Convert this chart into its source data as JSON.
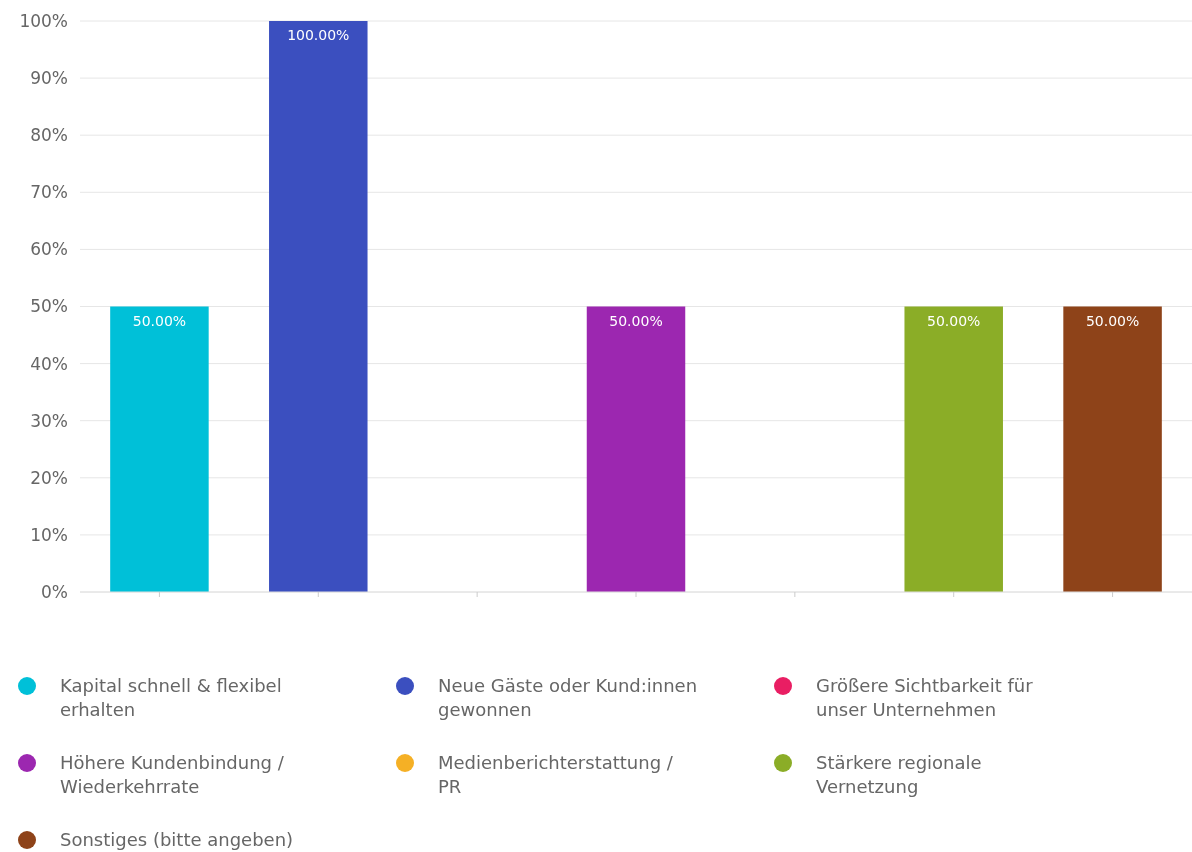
{
  "chart_data": {
    "type": "bar",
    "categories": [
      null,
      null,
      null,
      null,
      null,
      null,
      null
    ],
    "series": [
      {
        "name": "Kapital schnell & flexibel erhalten",
        "color": "#00c0d8",
        "values": [
          50,
          null,
          null,
          null,
          null,
          null,
          null
        ],
        "value_labels": [
          "50.00%",
          null,
          null,
          null,
          null,
          null,
          null
        ]
      },
      {
        "name": "Neue Gäste oder Kund:innen gewonnen",
        "color": "#3b4fbf",
        "values": [
          null,
          100,
          null,
          null,
          null,
          null,
          null
        ],
        "value_labels": [
          null,
          "100.00%",
          null,
          null,
          null,
          null,
          null
        ]
      },
      {
        "name": "Größere Sichtbarkeit für unser Unternehmen",
        "color": "#e91e63",
        "values": [
          null,
          null,
          0,
          null,
          null,
          null,
          null
        ],
        "value_labels": [
          null,
          null,
          null,
          null,
          null,
          null,
          null
        ]
      },
      {
        "name": "Höhere Kundenbindung / Wiederkehrrate",
        "color": "#9c27b0",
        "values": [
          null,
          null,
          null,
          50,
          null,
          null,
          null
        ],
        "value_labels": [
          null,
          null,
          null,
          "50.00%",
          null,
          null,
          null
        ]
      },
      {
        "name": "Medienberichterstattung / PR",
        "color": "#f5b025",
        "values": [
          null,
          null,
          null,
          null,
          0,
          null,
          null
        ],
        "value_labels": [
          null,
          null,
          null,
          null,
          null,
          null,
          null
        ]
      },
      {
        "name": "Stärkere regionale Vernetzung",
        "color": "#8bad27",
        "values": [
          null,
          null,
          null,
          null,
          null,
          50,
          null
        ],
        "value_labels": [
          null,
          null,
          null,
          null,
          null,
          "50.00%",
          null
        ]
      },
      {
        "name": "Sonstiges (bitte angeben)",
        "color": "#8e4319",
        "values": [
          null,
          null,
          null,
          null,
          null,
          null,
          50
        ],
        "value_labels": [
          null,
          null,
          null,
          null,
          null,
          null,
          "50.00%"
        ]
      }
    ],
    "ylim": [
      0,
      100
    ],
    "yticks": [
      {
        "value": 0,
        "label": "0%"
      },
      {
        "value": 10,
        "label": "10%"
      },
      {
        "value": 20,
        "label": "20%"
      },
      {
        "value": 30,
        "label": "30%"
      },
      {
        "value": 40,
        "label": "40%"
      },
      {
        "value": 50,
        "label": "50%"
      },
      {
        "value": 60,
        "label": "60%"
      },
      {
        "value": 70,
        "label": "70%"
      },
      {
        "value": 80,
        "label": "80%"
      },
      {
        "value": 90,
        "label": "90%"
      },
      {
        "value": 100,
        "label": "100%"
      }
    ],
    "grid": "y",
    "legend": "bottom"
  }
}
